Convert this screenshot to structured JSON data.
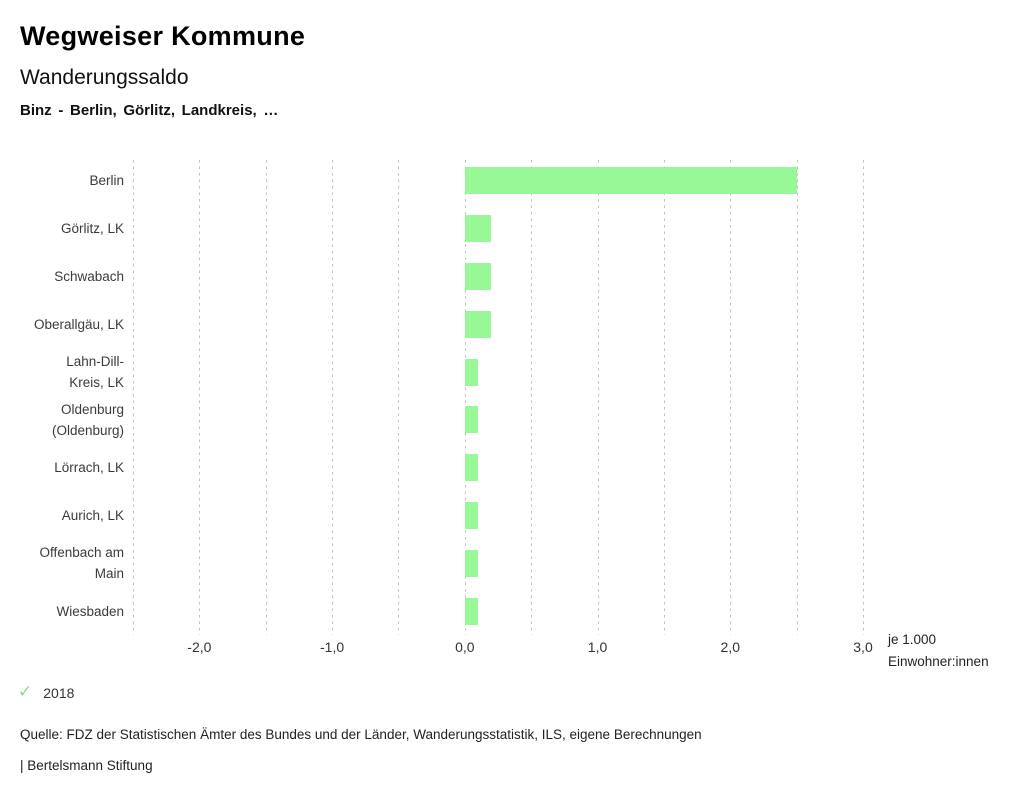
{
  "header": {
    "title": "Wegweiser Kommune",
    "subtitle": "Wanderungssaldo",
    "filter_line": "Binz - Berlin, Görlitz, Landkreis, …"
  },
  "chart_data": {
    "type": "bar",
    "orientation": "horizontal",
    "title": "Wanderungssaldo",
    "subtitle": "Binz - Berlin, Görlitz, Landkreis, …",
    "categories": [
      "Berlin",
      "Görlitz, LK",
      "Schwabach",
      "Oberallgäu, LK",
      "Lahn-Dill-Kreis, LK",
      "Oldenburg (Oldenburg)",
      "Lörrach, LK",
      "Aurich, LK",
      "Offenbach am Main",
      "Wiesbaden"
    ],
    "category_lines": [
      [
        "Berlin"
      ],
      [
        "Görlitz, LK"
      ],
      [
        "Schwabach"
      ],
      [
        "Oberallgäu, LK"
      ],
      [
        "Lahn-Dill-",
        "Kreis, LK"
      ],
      [
        "Oldenburg",
        "(Oldenburg)"
      ],
      [
        "Lörrach, LK"
      ],
      [
        "Aurich, LK"
      ],
      [
        "Offenbach am",
        "Main"
      ],
      [
        "Wiesbaden"
      ]
    ],
    "values": [
      2.5,
      0.2,
      0.2,
      0.2,
      0.1,
      0.1,
      0.1,
      0.1,
      0.1,
      0.1
    ],
    "xlim": [
      -2.5,
      3.0
    ],
    "gridline_step": 0.5,
    "grid": true,
    "x_ticks": [
      {
        "value": -2,
        "label": "-2,0"
      },
      {
        "value": -1,
        "label": "-1,0"
      },
      {
        "value": 0,
        "label": "0,0"
      },
      {
        "value": 1,
        "label": "1,0"
      },
      {
        "value": 2,
        "label": "2,0"
      },
      {
        "value": 3,
        "label": "3,0"
      }
    ],
    "unit_lines": [
      "je 1.000",
      "Einwohner:innen"
    ],
    "bar_color": "#98f898",
    "gridline_color": "#bfbfbf"
  },
  "legend": {
    "year": "2018",
    "check_icon": "check",
    "check_color": "#85e085"
  },
  "footer": {
    "source": "Quelle: FDZ der Statistischen Ämter des Bundes und der Länder, Wanderungsstatistik, ILS, eigene Berechnungen",
    "attribution": "| Bertelsmann Stiftung"
  }
}
